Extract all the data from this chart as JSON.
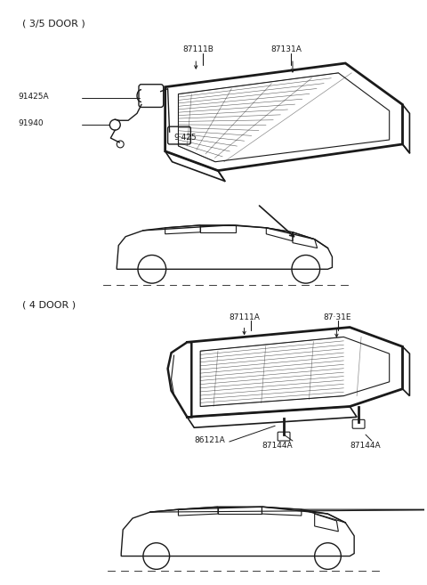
{
  "bg_color": "#ffffff",
  "line_color": "#1a1a1a",
  "section1_label": "( 3/5 DOOR )",
  "section2_label": "( 4 DOOR )",
  "label_91425A": "91425A",
  "label_91940": "91940",
  "label_91425": "9·425",
  "label_87111B": "87111B",
  "label_87131A": "87131A",
  "label_87111A": "87111A",
  "label_87131E": "87·31E",
  "label_86121A": "86121A",
  "label_87144A_L": "87144A",
  "label_87144A_R": "87144A"
}
